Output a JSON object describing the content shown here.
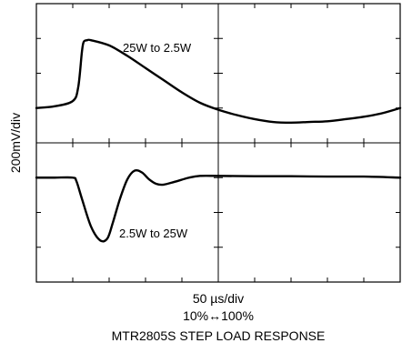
{
  "chart_data": {
    "type": "line",
    "title": "MTR2805S STEP LOAD RESPONSE",
    "xlabel": "50 µs/div",
    "xlabel_secondary": "10%↔100%",
    "ylabel": "200mV/div",
    "grid": true,
    "x_divisions": 10,
    "y_divisions": 8,
    "xlim": [
      0,
      10
    ],
    "ylim": [
      0,
      8
    ],
    "series": [
      {
        "name": "25W to 2.5W",
        "x": [
          0,
          0.5,
          1.0,
          1.15,
          1.25,
          1.3,
          1.4,
          1.5,
          2.0,
          2.5,
          3.0,
          3.5,
          4.0,
          4.5,
          5.0,
          5.5,
          6.0,
          6.5,
          7.0,
          7.5,
          8.0,
          8.5,
          9.0,
          9.5,
          10.0
        ],
        "y": [
          5.0,
          5.05,
          5.2,
          5.6,
          6.6,
          6.9,
          6.95,
          6.95,
          6.8,
          6.5,
          6.15,
          5.8,
          5.45,
          5.15,
          4.95,
          4.8,
          4.68,
          4.6,
          4.58,
          4.6,
          4.62,
          4.68,
          4.75,
          4.85,
          5.0
        ],
        "color": "#000000"
      },
      {
        "name": "2.5W to 25W",
        "x": [
          0,
          0.5,
          1.0,
          1.1,
          1.25,
          1.5,
          1.75,
          1.95,
          2.1,
          2.3,
          2.5,
          2.7,
          2.9,
          3.1,
          3.3,
          3.5,
          3.8,
          4.2,
          4.5,
          5.0,
          6.0,
          7.0,
          8.0,
          9.0,
          10.0
        ],
        "y": [
          3.0,
          3.0,
          3.0,
          2.9,
          2.4,
          1.6,
          1.2,
          1.25,
          1.7,
          2.4,
          2.95,
          3.2,
          3.15,
          2.95,
          2.82,
          2.8,
          2.88,
          3.0,
          3.05,
          3.05,
          3.04,
          3.04,
          3.03,
          3.03,
          3.0
        ],
        "color": "#000000"
      }
    ],
    "annotations": [
      {
        "text": "25W to 2.5W",
        "series": "25W to 2.5W"
      },
      {
        "text": "2.5W to 25W",
        "series": "2.5W to 25W"
      }
    ]
  }
}
